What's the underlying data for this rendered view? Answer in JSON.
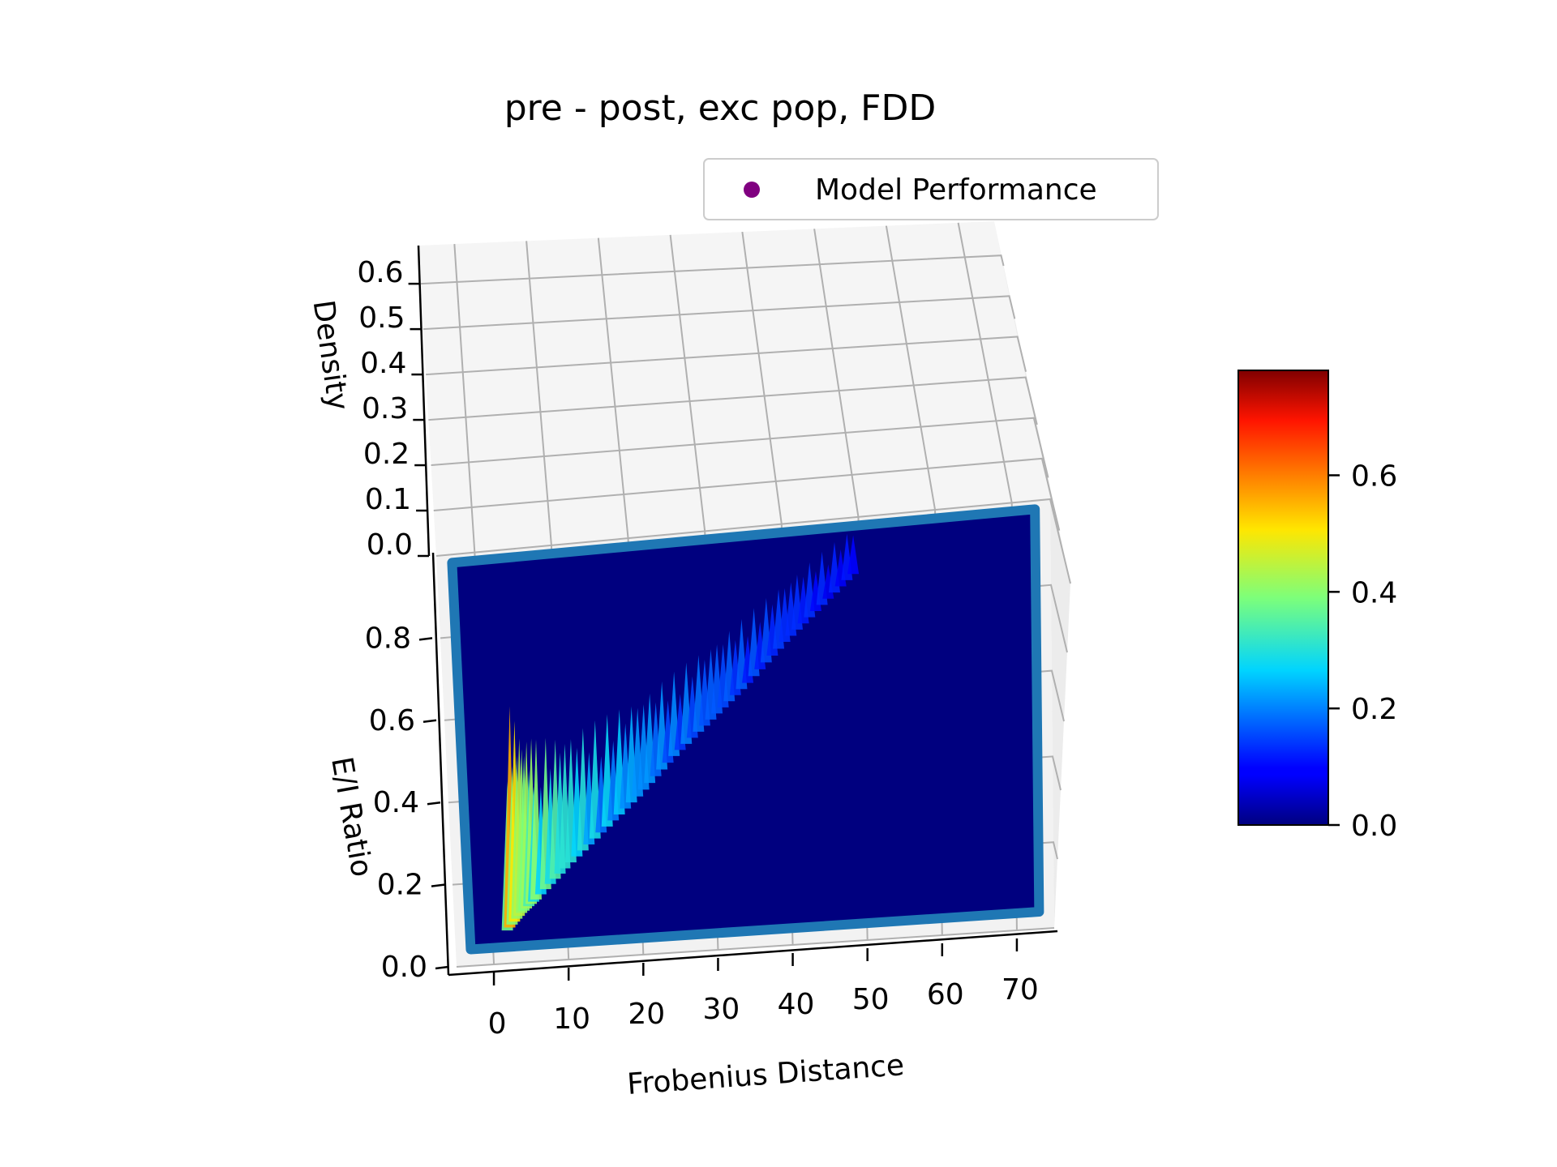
{
  "chart_data": {
    "type": "surface3d",
    "title": "pre - post, exc pop, FDD",
    "xlabel": "Frobenius Distance",
    "ylabel": "E/I Ratio",
    "zlabel": "Density",
    "x_ticks": [
      "0",
      "10",
      "20",
      "30",
      "40",
      "50",
      "60",
      "70"
    ],
    "y_ticks": [
      "0.0",
      "0.2",
      "0.4",
      "0.6",
      "0.8"
    ],
    "z_ticks": [
      "0.0",
      "0.1",
      "0.2",
      "0.3",
      "0.4",
      "0.5",
      "0.6"
    ],
    "xlim": [
      -5,
      75
    ],
    "ylim": [
      0,
      1.0
    ],
    "zlim": [
      0,
      0.65
    ],
    "colormap": "jet",
    "colorbar": {
      "range": [
        0,
        0.78
      ],
      "ticks": [
        "0.0",
        "0.2",
        "0.4",
        "0.6"
      ],
      "tick_values": [
        0.0,
        0.2,
        0.4,
        0.6
      ]
    },
    "legend": {
      "entries": [
        "Model Performance"
      ],
      "marker_color": "#800080",
      "placement": "top-right"
    },
    "boundary_color": "#1f77b4",
    "grid": true,
    "ridge": {
      "description": "density peak band rising along E/I ratio with Frobenius distance",
      "points": [
        {
          "x": 2,
          "y": 0.08,
          "z": 0.58
        },
        {
          "x": 4,
          "y": 0.12,
          "z": 0.46
        },
        {
          "x": 6,
          "y": 0.15,
          "z": 0.4
        },
        {
          "x": 10,
          "y": 0.22,
          "z": 0.34
        },
        {
          "x": 15,
          "y": 0.3,
          "z": 0.28
        },
        {
          "x": 20,
          "y": 0.38,
          "z": 0.24
        },
        {
          "x": 25,
          "y": 0.47,
          "z": 0.2
        },
        {
          "x": 30,
          "y": 0.55,
          "z": 0.18
        },
        {
          "x": 35,
          "y": 0.63,
          "z": 0.16
        },
        {
          "x": 40,
          "y": 0.72,
          "z": 0.14
        },
        {
          "x": 45,
          "y": 0.8,
          "z": 0.12
        },
        {
          "x": 50,
          "y": 0.88,
          "z": 0.1
        }
      ]
    }
  }
}
